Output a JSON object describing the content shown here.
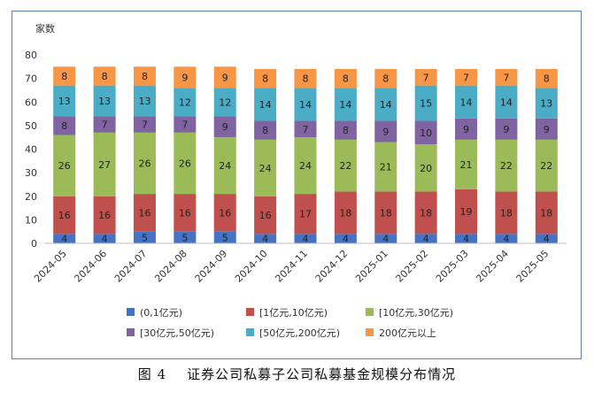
{
  "figure_caption": "图 4    证券公司私募子公司私募基金规模分布情况",
  "colors": [
    "#4472c4",
    "#c0504d",
    "#9bbb59",
    "#8064a2",
    "#4bacc6",
    "#f79646"
  ],
  "chart_data": {
    "type": "bar",
    "stacked": true,
    "ylabel": "家数",
    "ylim": [
      0,
      80
    ],
    "yticks": [
      0,
      10,
      20,
      30,
      40,
      50,
      60,
      70,
      80
    ],
    "grid": false,
    "legend_position": "bottom",
    "categories": [
      "2024-05",
      "2024-06",
      "2024-07",
      "2024-08",
      "2024-09",
      "2024-10",
      "2024-11",
      "2024-12",
      "2025-01",
      "2025-02",
      "2025-03",
      "2025-04",
      "2025-05"
    ],
    "series": [
      {
        "name": "(0,1亿元)",
        "values": [
          4,
          4,
          5,
          5,
          5,
          4,
          4,
          4,
          4,
          4,
          4,
          4,
          4
        ]
      },
      {
        "name": "[1亿元,10亿元)",
        "values": [
          16,
          16,
          16,
          16,
          16,
          16,
          17,
          18,
          18,
          18,
          19,
          18,
          18
        ]
      },
      {
        "name": "[10亿元,30亿元)",
        "values": [
          26,
          27,
          26,
          26,
          24,
          24,
          24,
          22,
          21,
          20,
          21,
          22,
          22
        ]
      },
      {
        "name": "[30亿元,50亿元)",
        "values": [
          8,
          7,
          7,
          7,
          9,
          8,
          7,
          8,
          9,
          10,
          9,
          9,
          9
        ]
      },
      {
        "name": "[50亿元,200亿元)",
        "values": [
          13,
          13,
          13,
          12,
          12,
          14,
          14,
          14,
          14,
          15,
          14,
          14,
          13
        ]
      },
      {
        "name": "200亿元以上",
        "values": [
          8,
          8,
          8,
          9,
          9,
          8,
          8,
          8,
          8,
          7,
          7,
          7,
          8
        ]
      }
    ]
  }
}
